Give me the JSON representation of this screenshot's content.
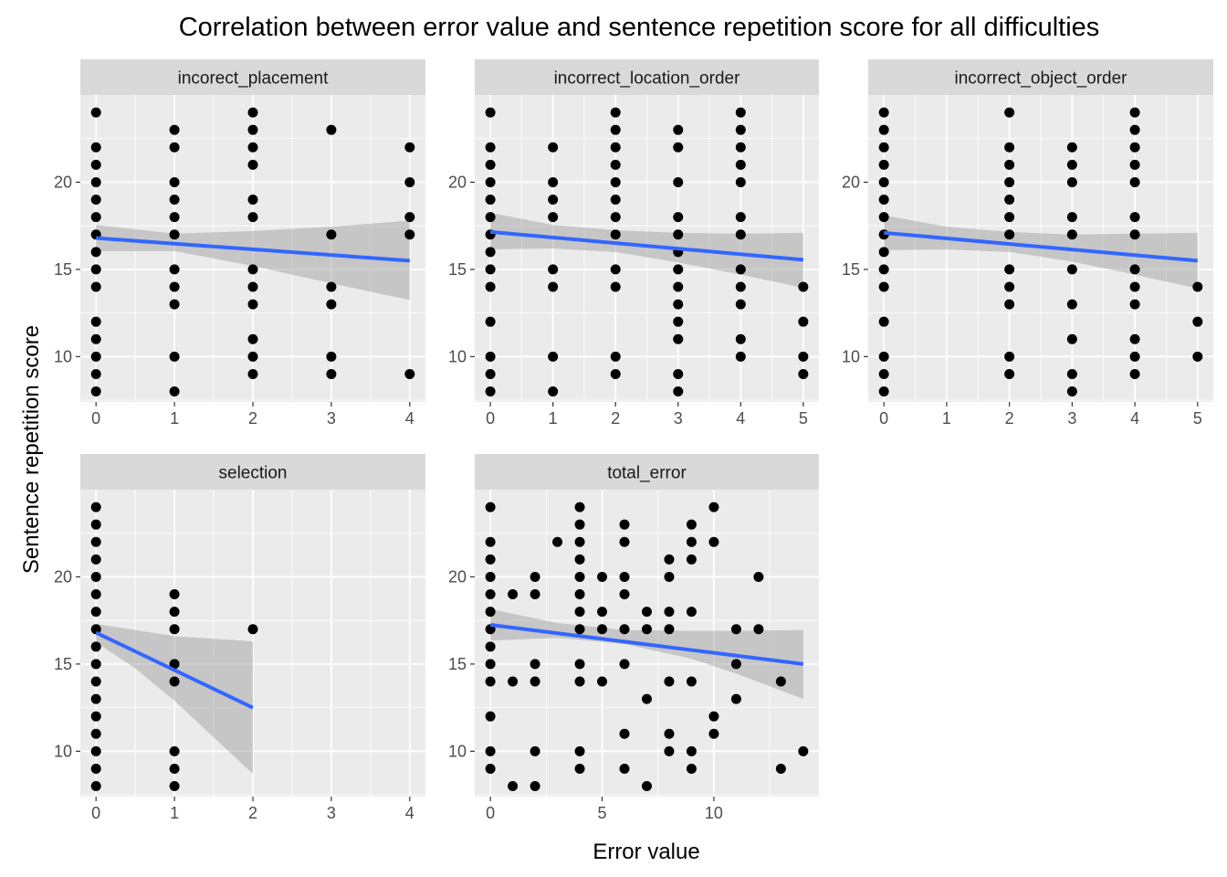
{
  "chart_data": {
    "type": "scatter",
    "title": "Correlation between error value and sentence repetition score for all difficulties",
    "xlabel": "Error value",
    "ylabel": "Sentence repetition score",
    "ylim": [
      7.4,
      25
    ],
    "y_ticks": [
      10,
      15,
      20
    ],
    "grid": true,
    "smoother": "linear fit with confidence band",
    "colors": {
      "panel_background": "#ebebeb",
      "grid": "#ffffff",
      "strip_background": "#d9d9d9",
      "point": "#000000",
      "fit_line": "#3366ff",
      "band": "#999999"
    },
    "panels": [
      {
        "name": "incorect_placement",
        "xlim": [
          -0.2,
          4.2
        ],
        "x_ticks": [
          0,
          1,
          2,
          3,
          4
        ],
        "show_x_ticks": true,
        "fit": {
          "x0": 0,
          "y0": 16.8,
          "x1": 4,
          "y1": 15.5
        },
        "band": [
          [
            0,
            17.55,
            16.05
          ],
          [
            1,
            17.05,
            16.05
          ],
          [
            2,
            17.2,
            15.2
          ],
          [
            3,
            17.45,
            14.2
          ],
          [
            4,
            17.8,
            13.25
          ]
        ],
        "points": [
          [
            0,
            24
          ],
          [
            0,
            22
          ],
          [
            0,
            21
          ],
          [
            0,
            20
          ],
          [
            0,
            19
          ],
          [
            0,
            18
          ],
          [
            0,
            17
          ],
          [
            0,
            16
          ],
          [
            0,
            15
          ],
          [
            0,
            14
          ],
          [
            0,
            12
          ],
          [
            0,
            11
          ],
          [
            0,
            10
          ],
          [
            0,
            9
          ],
          [
            0,
            8
          ],
          [
            1,
            23
          ],
          [
            1,
            22
          ],
          [
            1,
            20
          ],
          [
            1,
            19
          ],
          [
            1,
            18
          ],
          [
            1,
            17
          ],
          [
            1,
            15
          ],
          [
            1,
            14
          ],
          [
            1,
            13
          ],
          [
            1,
            10
          ],
          [
            1,
            8
          ],
          [
            2,
            24
          ],
          [
            2,
            23
          ],
          [
            2,
            22
          ],
          [
            2,
            21
          ],
          [
            2,
            19
          ],
          [
            2,
            18
          ],
          [
            2,
            15
          ],
          [
            2,
            14
          ],
          [
            2,
            13
          ],
          [
            2,
            11
          ],
          [
            2,
            10
          ],
          [
            2,
            9
          ],
          [
            3,
            23
          ],
          [
            3,
            17
          ],
          [
            3,
            14
          ],
          [
            3,
            13
          ],
          [
            3,
            10
          ],
          [
            3,
            9
          ],
          [
            4,
            22
          ],
          [
            4,
            20
          ],
          [
            4,
            18
          ],
          [
            4,
            17
          ],
          [
            4,
            9
          ]
        ]
      },
      {
        "name": "incorrect_location_order",
        "xlim": [
          -0.25,
          5.25
        ],
        "x_ticks": [
          0,
          1,
          2,
          3,
          4,
          5
        ],
        "show_x_ticks": true,
        "fit": {
          "x0": 0,
          "y0": 17.15,
          "x1": 5,
          "y1": 15.55
        },
        "band": [
          [
            0,
            18.25,
            16.15
          ],
          [
            1,
            17.55,
            16.2
          ],
          [
            2,
            17.25,
            16.0
          ],
          [
            3,
            17.1,
            15.4
          ],
          [
            4,
            17.05,
            14.7
          ],
          [
            5,
            17.1,
            13.95
          ]
        ],
        "points": [
          [
            0,
            24
          ],
          [
            0,
            22
          ],
          [
            0,
            21
          ],
          [
            0,
            20
          ],
          [
            0,
            19
          ],
          [
            0,
            18
          ],
          [
            0,
            17
          ],
          [
            0,
            16
          ],
          [
            0,
            15
          ],
          [
            0,
            14
          ],
          [
            0,
            12
          ],
          [
            0,
            10
          ],
          [
            0,
            9
          ],
          [
            0,
            8
          ],
          [
            1,
            22
          ],
          [
            1,
            20
          ],
          [
            1,
            19
          ],
          [
            1,
            18
          ],
          [
            1,
            15
          ],
          [
            1,
            14
          ],
          [
            1,
            10
          ],
          [
            1,
            8
          ],
          [
            2,
            24
          ],
          [
            2,
            23
          ],
          [
            2,
            22
          ],
          [
            2,
            21
          ],
          [
            2,
            20
          ],
          [
            2,
            19
          ],
          [
            2,
            18
          ],
          [
            2,
            17
          ],
          [
            2,
            15
          ],
          [
            2,
            14
          ],
          [
            2,
            10
          ],
          [
            2,
            9
          ],
          [
            3,
            23
          ],
          [
            3,
            22
          ],
          [
            3,
            20
          ],
          [
            3,
            18
          ],
          [
            3,
            17
          ],
          [
            3,
            16
          ],
          [
            3,
            15
          ],
          [
            3,
            14
          ],
          [
            3,
            13
          ],
          [
            3,
            12
          ],
          [
            3,
            11
          ],
          [
            3,
            9
          ],
          [
            3,
            8
          ],
          [
            4,
            24
          ],
          [
            4,
            23
          ],
          [
            4,
            22
          ],
          [
            4,
            21
          ],
          [
            4,
            20
          ],
          [
            4,
            18
          ],
          [
            4,
            17
          ],
          [
            4,
            15
          ],
          [
            4,
            14
          ],
          [
            4,
            13
          ],
          [
            4,
            11
          ],
          [
            4,
            10
          ],
          [
            5,
            14
          ],
          [
            5,
            12
          ],
          [
            5,
            10
          ],
          [
            5,
            9
          ]
        ]
      },
      {
        "name": "incorrect_object_order",
        "xlim": [
          -0.25,
          5.25
        ],
        "x_ticks": [
          0,
          1,
          2,
          3,
          4,
          5
        ],
        "show_x_ticks": true,
        "fit": {
          "x0": 0,
          "y0": 17.1,
          "x1": 5,
          "y1": 15.5
        },
        "band": [
          [
            0,
            18.1,
            16.1
          ],
          [
            1,
            17.45,
            16.15
          ],
          [
            2,
            17.15,
            16.0
          ],
          [
            3,
            17.0,
            15.45
          ],
          [
            4,
            17.05,
            14.7
          ],
          [
            5,
            17.1,
            13.9
          ]
        ],
        "points": [
          [
            0,
            24
          ],
          [
            0,
            23
          ],
          [
            0,
            22
          ],
          [
            0,
            21
          ],
          [
            0,
            20
          ],
          [
            0,
            19
          ],
          [
            0,
            18
          ],
          [
            0,
            17
          ],
          [
            0,
            16
          ],
          [
            0,
            15
          ],
          [
            0,
            14
          ],
          [
            0,
            12
          ],
          [
            0,
            10
          ],
          [
            0,
            9
          ],
          [
            0,
            8
          ],
          [
            2,
            24
          ],
          [
            2,
            22
          ],
          [
            2,
            21
          ],
          [
            2,
            20
          ],
          [
            2,
            19
          ],
          [
            2,
            18
          ],
          [
            2,
            17
          ],
          [
            2,
            15
          ],
          [
            2,
            14
          ],
          [
            2,
            13
          ],
          [
            2,
            10
          ],
          [
            2,
            9
          ],
          [
            3,
            22
          ],
          [
            3,
            21
          ],
          [
            3,
            20
          ],
          [
            3,
            18
          ],
          [
            3,
            17
          ],
          [
            3,
            15
          ],
          [
            3,
            13
          ],
          [
            3,
            11
          ],
          [
            3,
            9
          ],
          [
            3,
            8
          ],
          [
            4,
            24
          ],
          [
            4,
            23
          ],
          [
            4,
            22
          ],
          [
            4,
            21
          ],
          [
            4,
            20
          ],
          [
            4,
            18
          ],
          [
            4,
            17
          ],
          [
            4,
            15
          ],
          [
            4,
            14
          ],
          [
            4,
            13
          ],
          [
            4,
            11
          ],
          [
            4,
            10
          ],
          [
            4,
            9
          ],
          [
            5,
            14
          ],
          [
            5,
            12
          ],
          [
            5,
            10
          ]
        ]
      },
      {
        "name": "selection",
        "xlim": [
          -0.2,
          4.2
        ],
        "x_ticks": [
          0,
          1,
          2,
          3,
          4
        ],
        "show_x_ticks": true,
        "fit": {
          "x0": 0,
          "y0": 16.8,
          "x1": 2,
          "y1": 12.5
        },
        "band": [
          [
            0,
            17.3,
            16.25
          ],
          [
            0.5,
            16.95,
            14.75
          ],
          [
            1,
            16.6,
            12.9
          ],
          [
            1.5,
            16.45,
            10.8
          ],
          [
            2,
            16.3,
            8.7
          ]
        ],
        "points": [
          [
            0,
            24
          ],
          [
            0,
            23
          ],
          [
            0,
            22
          ],
          [
            0,
            21
          ],
          [
            0,
            20
          ],
          [
            0,
            19
          ],
          [
            0,
            18
          ],
          [
            0,
            17
          ],
          [
            0,
            16
          ],
          [
            0,
            15
          ],
          [
            0,
            14
          ],
          [
            0,
            13
          ],
          [
            0,
            12
          ],
          [
            0,
            11
          ],
          [
            0,
            10
          ],
          [
            0,
            9
          ],
          [
            0,
            8
          ],
          [
            1,
            19
          ],
          [
            1,
            18
          ],
          [
            1,
            17
          ],
          [
            1,
            15
          ],
          [
            1,
            14
          ],
          [
            1,
            10
          ],
          [
            1,
            9
          ],
          [
            1,
            8
          ],
          [
            2,
            17
          ]
        ]
      },
      {
        "name": "total_error",
        "xlim": [
          -0.7,
          14.7
        ],
        "x_ticks": [
          0,
          5,
          10
        ],
        "show_x_ticks": true,
        "fit": {
          "x0": 0,
          "y0": 17.25,
          "x1": 14,
          "y1": 15.0
        },
        "band": [
          [
            0,
            18.15,
            16.35
          ],
          [
            3,
            17.35,
            16.5
          ],
          [
            6,
            16.95,
            16.15
          ],
          [
            9,
            16.9,
            15.3
          ],
          [
            11,
            16.9,
            14.45
          ],
          [
            14,
            16.95,
            13.0
          ]
        ],
        "points": [
          [
            0,
            24
          ],
          [
            0,
            22
          ],
          [
            0,
            21
          ],
          [
            0,
            20
          ],
          [
            0,
            19
          ],
          [
            0,
            18
          ],
          [
            0,
            17
          ],
          [
            0,
            16
          ],
          [
            0,
            15
          ],
          [
            0,
            14
          ],
          [
            0,
            12
          ],
          [
            0,
            10
          ],
          [
            0,
            9
          ],
          [
            1,
            19
          ],
          [
            1,
            14
          ],
          [
            1,
            8
          ],
          [
            2,
            20
          ],
          [
            2,
            19
          ],
          [
            2,
            15
          ],
          [
            2,
            14
          ],
          [
            2,
            10
          ],
          [
            2,
            8
          ],
          [
            3,
            22
          ],
          [
            4,
            24
          ],
          [
            4,
            23
          ],
          [
            4,
            22
          ],
          [
            4,
            21
          ],
          [
            4,
            20
          ],
          [
            4,
            19
          ],
          [
            4,
            18
          ],
          [
            4,
            17
          ],
          [
            4,
            15
          ],
          [
            4,
            14
          ],
          [
            4,
            10
          ],
          [
            4,
            9
          ],
          [
            5,
            20
          ],
          [
            5,
            18
          ],
          [
            5,
            17
          ],
          [
            5,
            14
          ],
          [
            6,
            23
          ],
          [
            6,
            22
          ],
          [
            6,
            20
          ],
          [
            6,
            19
          ],
          [
            6,
            17
          ],
          [
            6,
            15
          ],
          [
            6,
            11
          ],
          [
            6,
            9
          ],
          [
            7,
            18
          ],
          [
            7,
            17
          ],
          [
            7,
            13
          ],
          [
            7,
            8
          ],
          [
            8,
            21
          ],
          [
            8,
            20
          ],
          [
            8,
            18
          ],
          [
            8,
            17
          ],
          [
            8,
            14
          ],
          [
            8,
            11
          ],
          [
            8,
            10
          ],
          [
            9,
            23
          ],
          [
            9,
            22
          ],
          [
            9,
            21
          ],
          [
            9,
            18
          ],
          [
            9,
            14
          ],
          [
            9,
            10
          ],
          [
            9,
            9
          ],
          [
            10,
            24
          ],
          [
            10,
            22
          ],
          [
            10,
            12
          ],
          [
            10,
            11
          ],
          [
            11,
            17
          ],
          [
            11,
            15
          ],
          [
            11,
            13
          ],
          [
            12,
            20
          ],
          [
            12,
            17
          ],
          [
            13,
            14
          ],
          [
            13,
            9
          ],
          [
            14,
            10
          ]
        ]
      }
    ]
  }
}
